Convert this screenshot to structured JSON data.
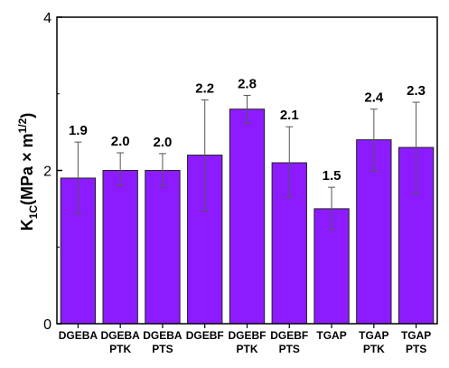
{
  "chart_data": {
    "type": "bar",
    "categories": [
      [
        "DGEBA"
      ],
      [
        "DGEBA",
        "PTK"
      ],
      [
        "DGEBA",
        "PTS"
      ],
      [
        "DGEBF"
      ],
      [
        "DGEBF",
        "PTK"
      ],
      [
        "DGEBF",
        "PTS"
      ],
      [
        "TGAP"
      ],
      [
        "TGAP",
        "PTK"
      ],
      [
        "TGAP",
        "PTS"
      ]
    ],
    "values": [
      1.9,
      2.0,
      2.0,
      2.2,
      2.8,
      2.1,
      1.5,
      2.4,
      2.3
    ],
    "value_labels": [
      "1.9",
      "2.0",
      "2.0",
      "2.2",
      "2.8",
      "2.1",
      "1.5",
      "2.4",
      "2.3"
    ],
    "errors": [
      [
        1.43,
        2.37
      ],
      [
        1.8,
        2.23
      ],
      [
        1.8,
        2.22
      ],
      [
        1.48,
        2.92
      ],
      [
        2.62,
        2.98
      ],
      [
        1.65,
        2.57
      ],
      [
        1.23,
        1.78
      ],
      [
        1.99,
        2.8
      ],
      [
        1.7,
        2.89
      ]
    ],
    "ylim": [
      0,
      4
    ],
    "yticks": [
      "0",
      "2",
      "4"
    ],
    "ytick_values": [
      0,
      2,
      4
    ],
    "ylabel": {
      "main": "K",
      "sub": "1C",
      "rest": "(MPa × m",
      "sup": "1/2",
      "end": ")"
    },
    "bar_color": "#8c1cff",
    "grid": false,
    "legend": "none"
  }
}
